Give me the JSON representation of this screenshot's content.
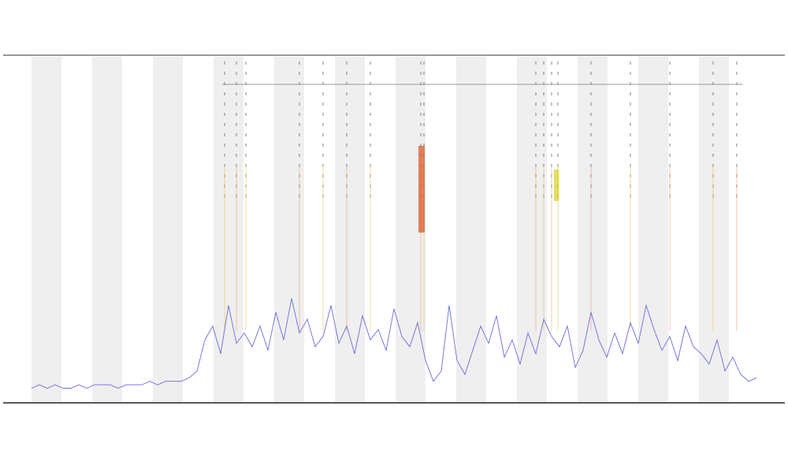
{
  "chart_data": {
    "type": "line",
    "series": [
      {
        "color": "#6b6bdc",
        "values": [
          4,
          5,
          4,
          5,
          4,
          4,
          5,
          4,
          5,
          5,
          5,
          4,
          5,
          5,
          5,
          6,
          5,
          6,
          6,
          6,
          7,
          9,
          18,
          22,
          14,
          28,
          17,
          20,
          16,
          22,
          15,
          26,
          18,
          30,
          20,
          24,
          16,
          19,
          28,
          17,
          22,
          14,
          25,
          18,
          21,
          15,
          27,
          19,
          16,
          23,
          12,
          6,
          9,
          28,
          12,
          8,
          15,
          22,
          17,
          25,
          13,
          18,
          11,
          20,
          14,
          24,
          19,
          16,
          22,
          10,
          15,
          26,
          18,
          13,
          20,
          14,
          23,
          17,
          28,
          21,
          15,
          19,
          12,
          22,
          16,
          14,
          11,
          18,
          9,
          13,
          8,
          6,
          7
        ]
      }
    ],
    "ylim": [
      0,
      100
    ]
  }
}
